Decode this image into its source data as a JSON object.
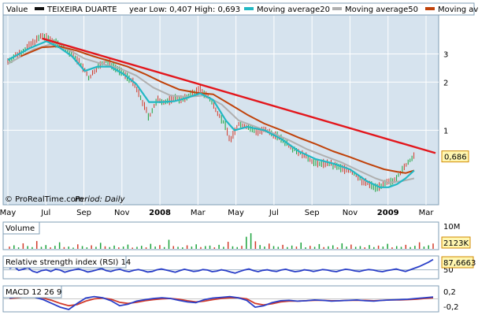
{
  "chart_data": [
    {
      "type": "line",
      "panel": "price",
      "title": "TEIXEIRA DUARTE",
      "label": "Value",
      "year_low_high": "year Low: 0,407 High: 0,693",
      "legend": [
        {
          "name": "TEIXEIRA DUARTE",
          "color": "#111111"
        },
        {
          "name": "Moving average20",
          "color": "#22b8c4"
        },
        {
          "name": "Moving average50",
          "color": "#b0b0b0"
        },
        {
          "name": "Moving av",
          "color": "#c0420a"
        }
      ],
      "y_scale": "log",
      "ylim": [
        0.35,
        5.2
      ],
      "y_ticks": [
        {
          "v": 3,
          "label": "3"
        },
        {
          "v": 2,
          "label": "2"
        },
        {
          "v": 1,
          "label": "1"
        }
      ],
      "x_ticks": [
        "May",
        "Jul",
        "Sep",
        "Nov",
        "2008",
        "Mar",
        "May",
        "Jul",
        "Sep",
        "Nov",
        "2009",
        "Mar"
      ],
      "x_tick_bold": [
        4,
        10
      ],
      "last_value": "0,686",
      "credit": "© ProRealTime.com",
      "period": "Period: Daily",
      "price": [
        [
          0,
          2.7
        ],
        [
          4,
          3.2
        ],
        [
          8,
          3.9
        ],
        [
          10,
          3.7
        ],
        [
          12,
          3.4
        ],
        [
          15,
          3.0
        ],
        [
          17,
          2.6
        ],
        [
          19,
          2.1
        ],
        [
          21,
          2.5
        ],
        [
          23,
          2.7
        ],
        [
          25,
          2.5
        ],
        [
          27,
          2.25
        ],
        [
          29,
          2.05
        ],
        [
          31,
          1.6
        ],
        [
          33,
          1.2
        ],
        [
          35,
          1.55
        ],
        [
          37,
          1.5
        ],
        [
          39,
          1.6
        ],
        [
          41,
          1.55
        ],
        [
          43,
          1.7
        ],
        [
          45,
          1.8
        ],
        [
          47,
          1.6
        ],
        [
          49,
          1.3
        ],
        [
          51,
          1.05
        ],
        [
          52,
          0.85
        ],
        [
          54,
          1.1
        ],
        [
          56,
          1.05
        ],
        [
          58,
          0.98
        ],
        [
          60,
          1.0
        ],
        [
          63,
          0.92
        ],
        [
          66,
          0.8
        ],
        [
          69,
          0.7
        ],
        [
          72,
          0.62
        ],
        [
          75,
          0.62
        ],
        [
          78,
          0.58
        ],
        [
          80,
          0.56
        ],
        [
          83,
          0.48
        ],
        [
          86,
          0.44
        ],
        [
          88,
          0.46
        ],
        [
          90,
          0.48
        ],
        [
          92,
          0.55
        ],
        [
          93,
          0.6
        ],
        [
          94,
          0.65
        ],
        [
          95,
          0.686
        ]
      ],
      "ma20": [
        [
          0,
          2.75
        ],
        [
          5,
          3.25
        ],
        [
          9,
          3.6
        ],
        [
          12,
          3.3
        ],
        [
          15,
          2.9
        ],
        [
          18,
          2.35
        ],
        [
          21,
          2.5
        ],
        [
          24,
          2.5
        ],
        [
          27,
          2.25
        ],
        [
          30,
          1.95
        ],
        [
          33,
          1.5
        ],
        [
          36,
          1.5
        ],
        [
          39,
          1.52
        ],
        [
          42,
          1.6
        ],
        [
          45,
          1.7
        ],
        [
          48,
          1.55
        ],
        [
          51,
          1.15
        ],
        [
          53,
          1.0
        ],
        [
          56,
          1.05
        ],
        [
          60,
          1.0
        ],
        [
          64,
          0.88
        ],
        [
          68,
          0.74
        ],
        [
          72,
          0.66
        ],
        [
          76,
          0.62
        ],
        [
          80,
          0.57
        ],
        [
          84,
          0.48
        ],
        [
          87,
          0.44
        ],
        [
          89,
          0.44
        ],
        [
          91,
          0.46
        ],
        [
          93,
          0.5
        ],
        [
          95,
          0.56
        ]
      ],
      "ma50": [
        [
          0,
          2.6
        ],
        [
          6,
          3.2
        ],
        [
          10,
          3.45
        ],
        [
          14,
          3.2
        ],
        [
          18,
          2.8
        ],
        [
          22,
          2.6
        ],
        [
          26,
          2.45
        ],
        [
          30,
          2.2
        ],
        [
          34,
          1.85
        ],
        [
          38,
          1.65
        ],
        [
          42,
          1.62
        ],
        [
          46,
          1.65
        ],
        [
          50,
          1.45
        ],
        [
          54,
          1.15
        ],
        [
          58,
          1.05
        ],
        [
          62,
          0.96
        ],
        [
          66,
          0.86
        ],
        [
          70,
          0.76
        ],
        [
          74,
          0.69
        ],
        [
          78,
          0.63
        ],
        [
          82,
          0.56
        ],
        [
          86,
          0.5
        ],
        [
          89,
          0.47
        ],
        [
          92,
          0.48
        ],
        [
          95,
          0.5
        ]
      ],
      "ma100": [
        [
          3,
          2.9
        ],
        [
          8,
          3.3
        ],
        [
          12,
          3.35
        ],
        [
          16,
          3.15
        ],
        [
          20,
          2.9
        ],
        [
          24,
          2.7
        ],
        [
          28,
          2.5
        ],
        [
          32,
          2.25
        ],
        [
          36,
          2.0
        ],
        [
          40,
          1.8
        ],
        [
          44,
          1.72
        ],
        [
          48,
          1.68
        ],
        [
          52,
          1.45
        ],
        [
          56,
          1.25
        ],
        [
          60,
          1.1
        ],
        [
          64,
          1.0
        ],
        [
          68,
          0.9
        ],
        [
          72,
          0.82
        ],
        [
          76,
          0.74
        ],
        [
          80,
          0.68
        ],
        [
          84,
          0.62
        ],
        [
          88,
          0.57
        ],
        [
          91,
          0.55
        ],
        [
          93,
          0.54
        ],
        [
          95,
          0.56
        ]
      ],
      "trendline": [
        [
          8,
          3.75
        ],
        [
          100,
          0.72
        ]
      ]
    },
    {
      "type": "bar",
      "panel": "volume",
      "title": "Volume",
      "y_tick_label": "10M",
      "last_value": "2123K",
      "values_k": [
        900,
        1400,
        600,
        2200,
        1100,
        700,
        3100,
        800,
        1500,
        600,
        1200,
        2600,
        700,
        900,
        500,
        1800,
        1100,
        600,
        1400,
        800,
        2400,
        1000,
        700,
        1300,
        600,
        900,
        1700,
        500,
        800,
        1200,
        600,
        2000,
        900,
        1500,
        700,
        3600,
        1100,
        800,
        600,
        1400,
        900,
        1800,
        700,
        1100,
        1300,
        600,
        1600,
        800,
        2800,
        1000,
        700,
        1200,
        4800,
        6200,
        3000,
        1500,
        900,
        2100,
        1100,
        800,
        1600,
        700,
        1300,
        900,
        2500,
        600,
        1200,
        800,
        1900,
        700,
        1000,
        1400,
        600,
        2200,
        900,
        1700,
        800,
        1100,
        600,
        1500,
        700,
        1300,
        900,
        2000,
        600,
        1100,
        800,
        1600,
        700,
        1200,
        2600,
        900,
        1400,
        2123
      ]
    },
    {
      "type": "line",
      "panel": "rsi",
      "title": "Relative strength index (RSI) 14",
      "y_tick_label": "50",
      "last_value": "87,6663",
      "values": [
        55,
        62,
        48,
        52,
        58,
        45,
        40,
        47,
        50,
        44,
        52,
        49,
        41,
        46,
        50,
        53,
        48,
        42,
        45,
        50,
        55,
        47,
        44,
        49,
        52,
        46,
        43,
        48,
        51,
        47,
        42,
        44,
        50,
        53,
        49,
        45,
        41,
        47,
        52,
        48,
        44,
        46,
        51,
        49,
        43,
        45,
        50,
        47,
        42,
        38,
        44,
        49,
        53,
        47,
        43,
        48,
        50,
        46,
        44,
        49,
        52,
        47,
        43,
        45,
        50,
        48,
        44,
        47,
        51,
        49,
        45,
        43,
        48,
        52,
        50,
        46,
        44,
        48,
        51,
        49,
        45,
        43,
        47,
        50,
        53,
        48,
        44,
        50,
        56,
        62,
        70,
        78,
        87.67
      ]
    },
    {
      "type": "line",
      "panel": "macd",
      "title": "MACD 12 26 9",
      "y_ticks": [
        {
          "v": 0.2,
          "label": "0,2"
        },
        {
          "v": -0.2,
          "label": "-0,2"
        }
      ],
      "macd": [
        0.02,
        0.05,
        0.08,
        0.04,
        -0.02,
        -0.12,
        -0.22,
        -0.28,
        -0.12,
        0.02,
        0.06,
        0.03,
        -0.05,
        -0.18,
        -0.14,
        -0.06,
        -0.02,
        0.01,
        0.03,
        0.01,
        -0.04,
        -0.08,
        -0.1,
        -0.02,
        0.02,
        0.04,
        0.06,
        0.03,
        -0.04,
        -0.22,
        -0.18,
        -0.1,
        -0.05,
        -0.04,
        -0.06,
        -0.05,
        -0.03,
        -0.04,
        -0.06,
        -0.05,
        -0.04,
        -0.03,
        -0.05,
        -0.06,
        -0.04,
        -0.03,
        -0.02,
        -0.01,
        0.01,
        0.03,
        0.05
      ],
      "signal": [
        0.01,
        0.03,
        0.05,
        0.05,
        0.02,
        -0.04,
        -0.12,
        -0.18,
        -0.15,
        -0.06,
        0.0,
        0.02,
        -0.01,
        -0.09,
        -0.12,
        -0.09,
        -0.05,
        -0.02,
        0.0,
        0.01,
        -0.01,
        -0.05,
        -0.08,
        -0.06,
        -0.02,
        0.01,
        0.03,
        0.03,
        0.0,
        -0.12,
        -0.16,
        -0.13,
        -0.08,
        -0.06,
        -0.06,
        -0.05,
        -0.04,
        -0.04,
        -0.05,
        -0.05,
        -0.04,
        -0.04,
        -0.04,
        -0.05,
        -0.04,
        -0.03,
        -0.03,
        -0.02,
        -0.01,
        0.01,
        0.03
      ]
    }
  ]
}
